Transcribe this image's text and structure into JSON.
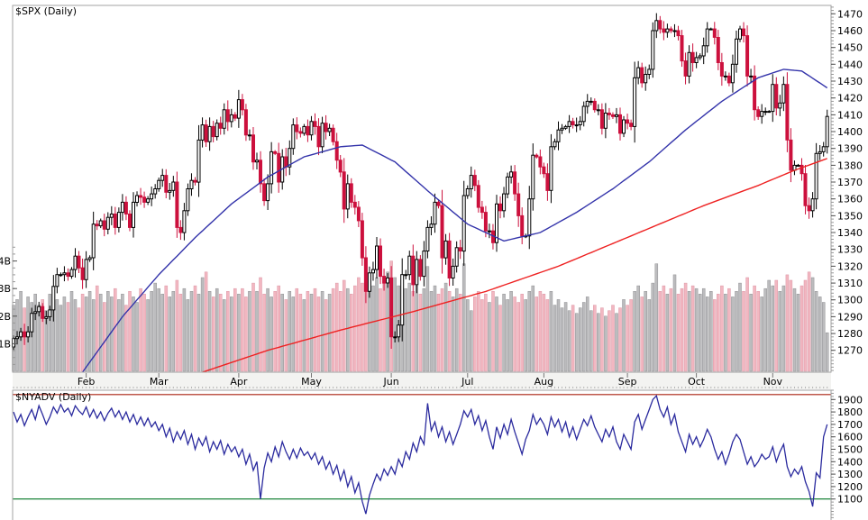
{
  "spx": {
    "title": "$SPX (Daily)"
  },
  "nyadv": {
    "title": "$NYADV (Daily)"
  },
  "chart_data": [
    {
      "type": "candlestick+volume",
      "symbol": "$SPX",
      "timeframe": "Daily",
      "title": "$SPX (Daily)",
      "ylim": [
        1257,
        1475
      ],
      "price_ticks": [
        1470,
        1460,
        1450,
        1440,
        1430,
        1420,
        1410,
        1400,
        1390,
        1380,
        1370,
        1360,
        1350,
        1340,
        1330,
        1320,
        1310,
        1300,
        1290,
        1280,
        1270
      ],
      "volume_ticks": [
        {
          "label": "4B",
          "value": 4
        },
        {
          "label": "3B",
          "value": 3
        },
        {
          "label": "2B",
          "value": 2
        },
        {
          "label": "1B",
          "value": 1
        }
      ],
      "months": [
        {
          "label": "Feb",
          "start": 20
        },
        {
          "label": "Mar",
          "start": 40
        },
        {
          "label": "Apr",
          "start": 62
        },
        {
          "label": "May",
          "start": 82
        },
        {
          "label": "Jun",
          "start": 104
        },
        {
          "label": "Jul",
          "start": 125
        },
        {
          "label": "Aug",
          "start": 146
        },
        {
          "label": "Sep",
          "start": 169
        },
        {
          "label": "Oct",
          "start": 188
        },
        {
          "label": "Nov",
          "start": 209
        }
      ],
      "closes": [
        1277,
        1278,
        1281,
        1278,
        1281,
        1292,
        1293,
        1296,
        1289,
        1290,
        1294,
        1308,
        1315,
        1315,
        1316,
        1314,
        1318,
        1326,
        1319,
        1312,
        1324,
        1325,
        1345,
        1344,
        1347,
        1342,
        1349,
        1351,
        1343,
        1352,
        1358,
        1351,
        1343,
        1358,
        1362,
        1361,
        1358,
        1360,
        1363,
        1366,
        1371,
        1374,
        1364,
        1365,
        1370,
        1343,
        1340,
        1353,
        1366,
        1371,
        1370,
        1395,
        1404,
        1394,
        1403,
        1397,
        1405,
        1402,
        1413,
        1406,
        1410,
        1408,
        1419,
        1413,
        1398,
        1398,
        1382,
        1383,
        1369,
        1359,
        1369,
        1388,
        1387,
        1370,
        1385,
        1379,
        1390,
        1404,
        1400,
        1399,
        1403,
        1398,
        1406,
        1403,
        1391,
        1405,
        1400,
        1402,
        1394,
        1383,
        1376,
        1354,
        1369,
        1358,
        1355,
        1347,
        1325,
        1305,
        1316,
        1318,
        1332,
        1314,
        1310,
        1313,
        1278,
        1278,
        1285,
        1315,
        1315,
        1326,
        1309,
        1324,
        1314,
        1329,
        1343,
        1345,
        1358,
        1356,
        1325,
        1335,
        1313,
        1320,
        1331,
        1329,
        1362,
        1366,
        1374,
        1368,
        1355,
        1352,
        1341,
        1341,
        1334,
        1357,
        1353,
        1363,
        1373,
        1376,
        1363,
        1350,
        1338,
        1338,
        1360,
        1386,
        1385,
        1379,
        1375,
        1365,
        1391,
        1394,
        1401,
        1402,
        1403,
        1406,
        1404,
        1404,
        1406,
        1415,
        1418,
        1418,
        1413,
        1413,
        1402,
        1411,
        1410,
        1409,
        1410,
        1399,
        1407,
        1405,
        1403,
        1432,
        1438,
        1429,
        1434,
        1437,
        1460,
        1466,
        1461,
        1459,
        1461,
        1460,
        1460,
        1457,
        1442,
        1433,
        1447,
        1441,
        1444,
        1445,
        1451,
        1461,
        1461,
        1456,
        1441,
        1433,
        1433,
        1429,
        1440,
        1455,
        1461,
        1457,
        1433,
        1433,
        1413,
        1409,
        1412,
        1412,
        1412,
        1428,
        1414,
        1417,
        1428,
        1395,
        1377,
        1380,
        1380,
        1375,
        1356,
        1353,
        1360,
        1387,
        1388,
        1391,
        1409
      ],
      "volumes_billions": [
        2.4,
        2.6,
        2.9,
        2.3,
        2.7,
        2.5,
        2.8,
        2.4,
        2.6,
        2.2,
        2.8,
        3.0,
        2.6,
        2.4,
        2.7,
        2.5,
        2.9,
        2.6,
        2.3,
        2.8,
        2.7,
        2.9,
        2.6,
        3.1,
        2.8,
        2.5,
        2.9,
        2.7,
        3.0,
        2.6,
        2.8,
        2.4,
        2.9,
        2.7,
        2.5,
        3.0,
        2.8,
        2.6,
        2.9,
        3.2,
        3.0,
        2.8,
        3.1,
        2.7,
        2.9,
        3.3,
        2.8,
        3.0,
        2.6,
        2.9,
        3.1,
        2.8,
        3.4,
        3.6,
        2.9,
        2.7,
        3.0,
        2.8,
        2.6,
        2.9,
        2.7,
        3.0,
        2.8,
        3.0,
        2.7,
        2.9,
        3.2,
        2.9,
        3.4,
        2.8,
        3.0,
        2.7,
        2.9,
        3.1,
        2.8,
        2.6,
        2.9,
        2.7,
        3.0,
        2.8,
        2.6,
        2.9,
        2.8,
        3.0,
        2.7,
        2.9,
        2.6,
        2.8,
        3.0,
        3.2,
        2.9,
        3.3,
        3.0,
        2.8,
        3.1,
        3.4,
        3.2,
        3.6,
        3.3,
        3.1,
        3.4,
        3.0,
        3.2,
        3.6,
        4.0,
        3.4,
        3.1,
        3.3,
        3.0,
        3.2,
        2.9,
        3.1,
        2.8,
        3.0,
        3.8,
        2.9,
        3.1,
        2.8,
        3.0,
        3.2,
        2.9,
        2.7,
        3.0,
        2.8,
        3.9,
        2.6,
        2.2,
        2.7,
        2.9,
        2.6,
        2.8,
        2.5,
        2.9,
        2.7,
        2.4,
        2.8,
        2.6,
        2.9,
        2.7,
        2.5,
        2.8,
        2.6,
        2.9,
        3.1,
        2.7,
        2.9,
        2.8,
        2.6,
        2.9,
        2.4,
        2.6,
        2.3,
        2.5,
        2.2,
        2.4,
        2.1,
        2.3,
        2.5,
        2.7,
        2.2,
        2.4,
        2.1,
        2.3,
        2.0,
        2.2,
        2.4,
        2.1,
        2.3,
        2.6,
        2.4,
        2.6,
        2.9,
        3.1,
        2.7,
        2.9,
        2.6,
        3.2,
        3.9,
        2.9,
        3.1,
        2.8,
        3.0,
        3.5,
        2.8,
        3.0,
        3.2,
        2.9,
        3.1,
        3.0,
        2.8,
        3.0,
        2.7,
        2.9,
        2.6,
        2.8,
        3.1,
        2.8,
        3.0,
        2.7,
        2.9,
        3.2,
        2.9,
        3.4,
        2.8,
        3.1,
        2.9,
        2.7,
        3.0,
        3.3,
        3.1,
        3.3,
        2.9,
        3.1,
        3.5,
        3.3,
        3.0,
        2.8,
        3.1,
        3.3,
        3.6,
        3.4,
        2.9,
        2.7,
        2.5,
        1.4
      ],
      "ma50_anchors": [
        [
          19,
          1257
        ],
        [
          30,
          1290
        ],
        [
          40,
          1315
        ],
        [
          50,
          1337
        ],
        [
          60,
          1357
        ],
        [
          70,
          1373
        ],
        [
          80,
          1385
        ],
        [
          90,
          1391
        ],
        [
          96,
          1392
        ],
        [
          105,
          1382
        ],
        [
          115,
          1363
        ],
        [
          125,
          1345
        ],
        [
          135,
          1335
        ],
        [
          145,
          1340
        ],
        [
          155,
          1352
        ],
        [
          165,
          1366
        ],
        [
          175,
          1382
        ],
        [
          185,
          1401
        ],
        [
          195,
          1418
        ],
        [
          205,
          1432
        ],
        [
          212,
          1437
        ],
        [
          217,
          1436
        ],
        [
          224,
          1426
        ]
      ],
      "ma200_anchors": [
        [
          52,
          1257
        ],
        [
          70,
          1270
        ],
        [
          90,
          1282
        ],
        [
          110,
          1293
        ],
        [
          130,
          1305
        ],
        [
          150,
          1320
        ],
        [
          170,
          1338
        ],
        [
          190,
          1356
        ],
        [
          205,
          1368
        ],
        [
          215,
          1377
        ],
        [
          224,
          1384
        ]
      ],
      "colors": {
        "up_fill": "#ffffff",
        "up_stroke": "#000000",
        "down": "#cc103d",
        "ma50": "#3333aa",
        "ma200": "#ee2222",
        "vol_up_fill": "#bcbcbe",
        "vol_up_stroke": "#909093",
        "vol_down_fill": "#f2b7c1",
        "vol_down_stroke": "#dc96a5",
        "border": "#a3a3a3",
        "strip_bg": "#f3f3f1"
      }
    },
    {
      "type": "line",
      "symbol": "$NYADV",
      "timeframe": "Daily",
      "title": "$NYADV (Daily)",
      "ylim": [
        931,
        1975
      ],
      "ticks": [
        1900,
        1800,
        1700,
        1600,
        1500,
        1400,
        1300,
        1200,
        1100
      ],
      "hlines": [
        {
          "value": 1940,
          "color": "#aa2211"
        },
        {
          "value": 1100,
          "color": "#007722"
        }
      ],
      "line_color": "#2a2a9e",
      "values": [
        1800,
        1720,
        1780,
        1690,
        1760,
        1820,
        1740,
        1850,
        1780,
        1700,
        1760,
        1840,
        1790,
        1860,
        1800,
        1830,
        1770,
        1850,
        1810,
        1780,
        1840,
        1760,
        1820,
        1750,
        1800,
        1730,
        1790,
        1830,
        1760,
        1810,
        1740,
        1800,
        1720,
        1780,
        1700,
        1760,
        1690,
        1750,
        1680,
        1720,
        1650,
        1700,
        1600,
        1670,
        1560,
        1640,
        1580,
        1650,
        1540,
        1620,
        1500,
        1590,
        1530,
        1600,
        1480,
        1560,
        1500,
        1570,
        1460,
        1540,
        1480,
        1520,
        1440,
        1500,
        1380,
        1460,
        1330,
        1400,
        1100,
        1350,
        1470,
        1400,
        1520,
        1440,
        1560,
        1480,
        1420,
        1500,
        1430,
        1510,
        1450,
        1480,
        1420,
        1470,
        1380,
        1440,
        1340,
        1400,
        1300,
        1370,
        1250,
        1330,
        1200,
        1280,
        1150,
        1230,
        1080,
        980,
        1130,
        1220,
        1300,
        1250,
        1340,
        1290,
        1360,
        1300,
        1420,
        1360,
        1480,
        1420,
        1550,
        1480,
        1600,
        1540,
        1870,
        1650,
        1720,
        1600,
        1680,
        1560,
        1640,
        1540,
        1620,
        1700,
        1810,
        1760,
        1820,
        1700,
        1770,
        1650,
        1730,
        1600,
        1500,
        1680,
        1590,
        1700,
        1620,
        1740,
        1640,
        1550,
        1460,
        1580,
        1650,
        1780,
        1700,
        1750,
        1700,
        1620,
        1760,
        1680,
        1740,
        1640,
        1720,
        1600,
        1680,
        1580,
        1660,
        1740,
        1690,
        1770,
        1680,
        1620,
        1560,
        1660,
        1600,
        1680,
        1560,
        1500,
        1620,
        1560,
        1500,
        1720,
        1780,
        1660,
        1740,
        1820,
        1900,
        1930,
        1820,
        1760,
        1840,
        1700,
        1780,
        1640,
        1560,
        1480,
        1620,
        1540,
        1600,
        1520,
        1580,
        1660,
        1600,
        1500,
        1420,
        1480,
        1380,
        1460,
        1560,
        1620,
        1580,
        1480,
        1380,
        1440,
        1360,
        1400,
        1460,
        1420,
        1440,
        1520,
        1400,
        1480,
        1540,
        1360,
        1280,
        1340,
        1300,
        1360,
        1240,
        1160,
        1040,
        1310,
        1270,
        1600,
        1700
      ]
    }
  ]
}
